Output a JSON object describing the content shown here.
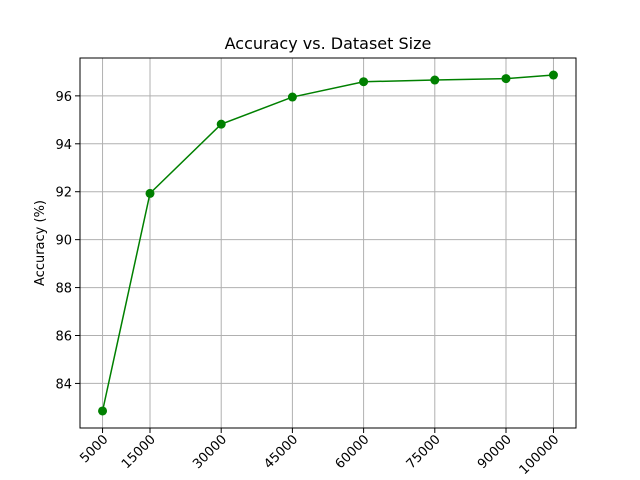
{
  "chart_data": {
    "type": "line",
    "title": "Accuracy vs. Dataset Size",
    "xlabel": "",
    "ylabel": "Accuracy (%)",
    "x": [
      5000,
      15000,
      30000,
      45000,
      60000,
      75000,
      90000,
      100000
    ],
    "series": [
      {
        "values": [
          82.85,
          91.93,
          94.82,
          95.95,
          96.59,
          96.66,
          96.72,
          96.87
        ]
      }
    ],
    "x_ticks": [
      "5000",
      "15000",
      "30000",
      "45000",
      "60000",
      "75000",
      "90000",
      "100000"
    ],
    "y_ticks": [
      84,
      86,
      88,
      90,
      92,
      94,
      96
    ],
    "ylim": [
      82.14,
      97.58
    ],
    "grid": true,
    "line_color": "#008000"
  }
}
